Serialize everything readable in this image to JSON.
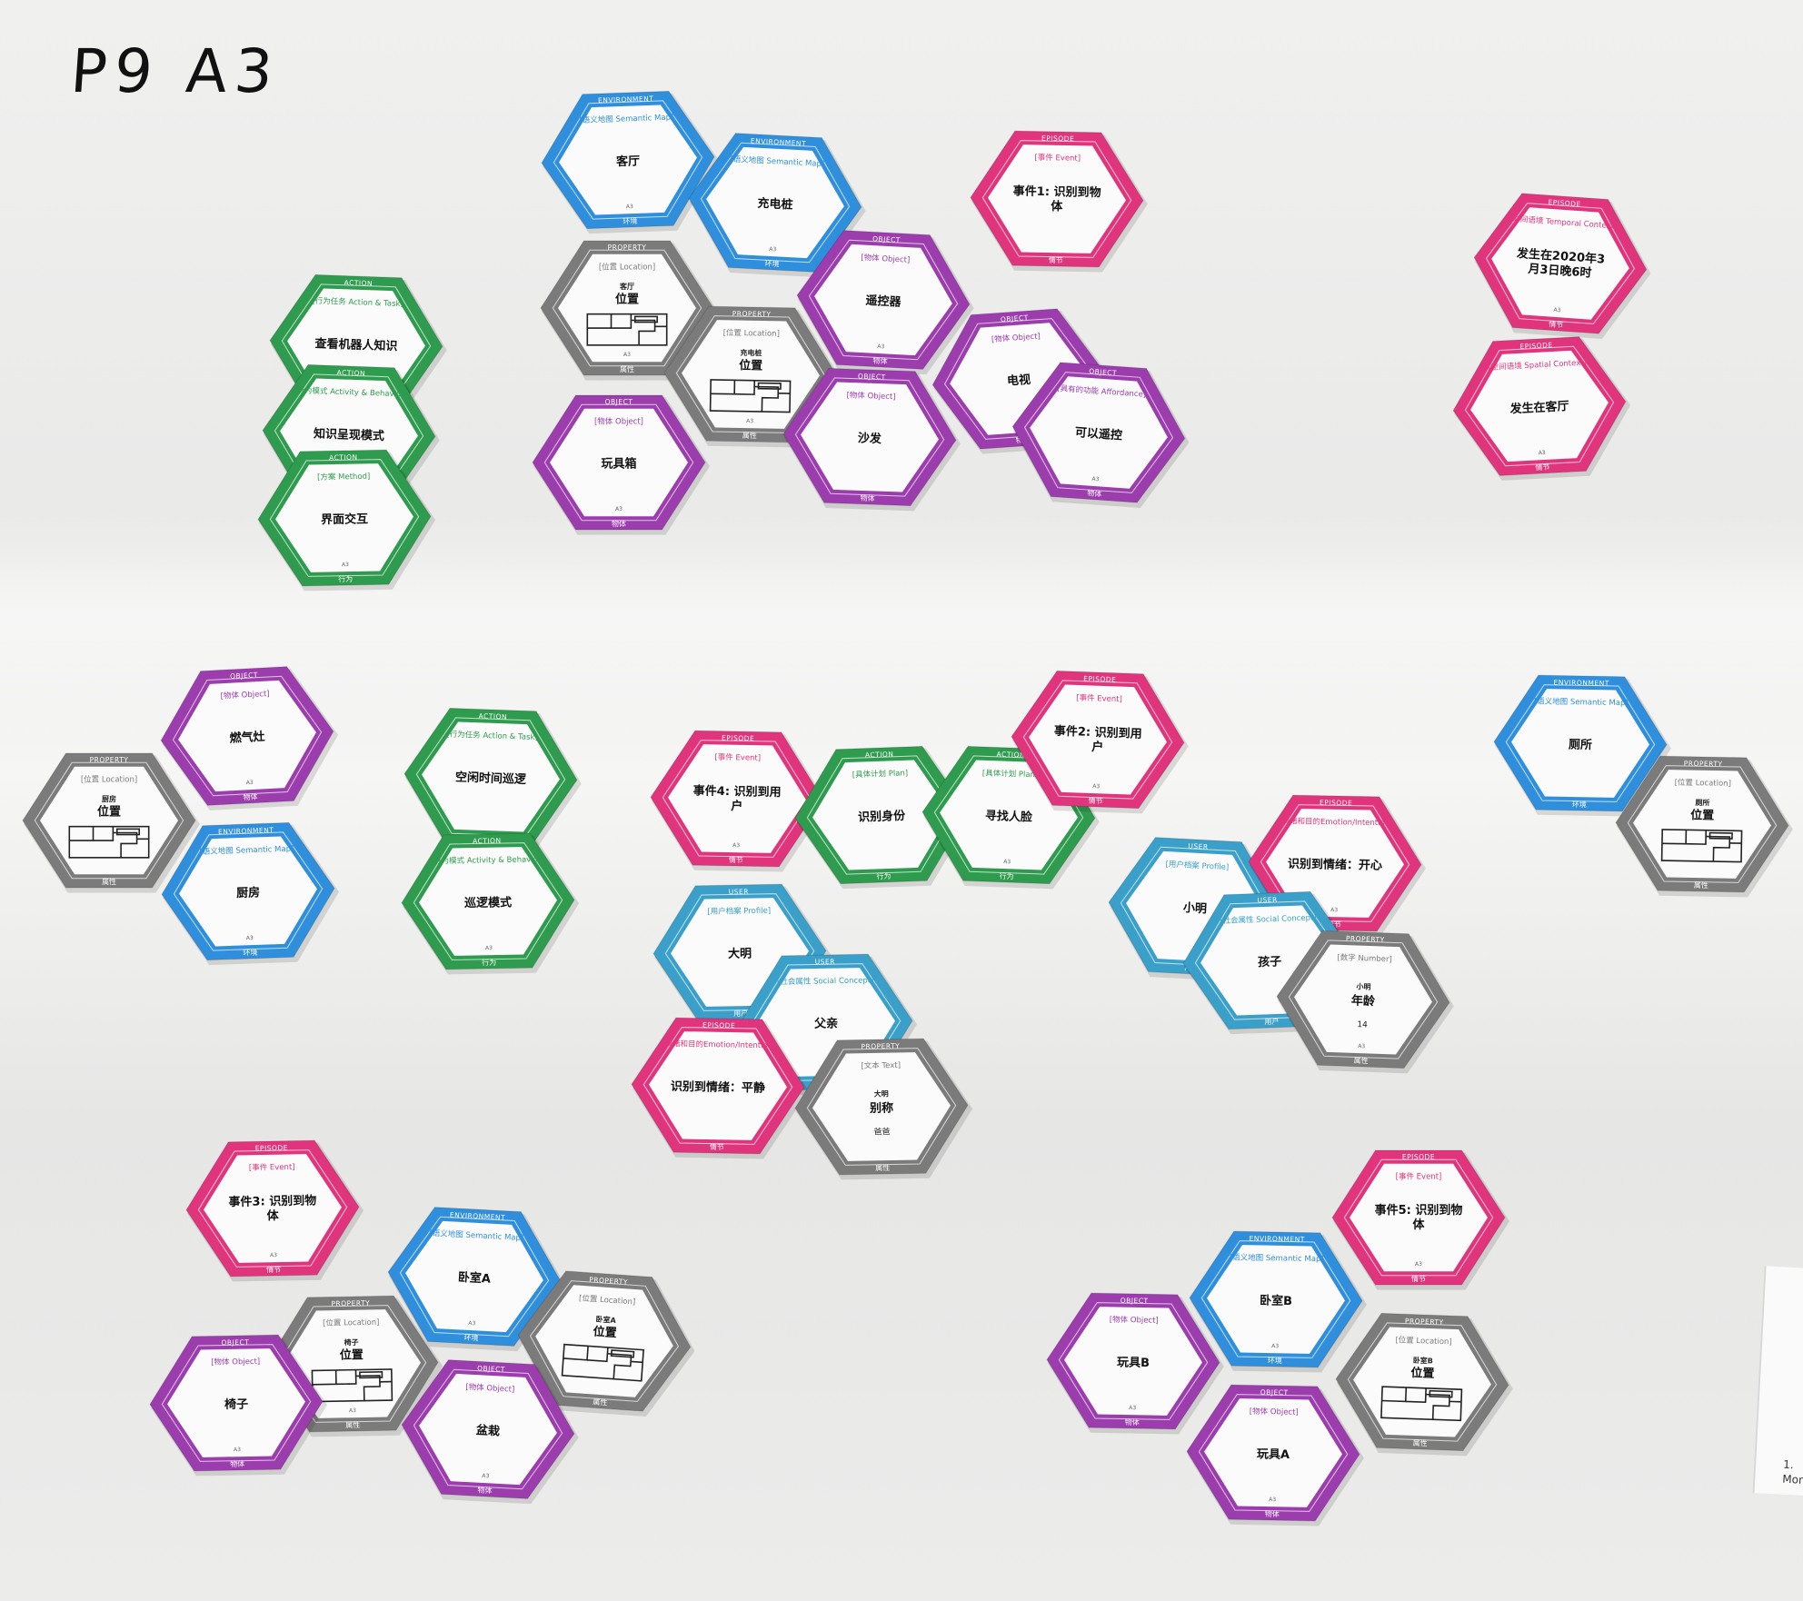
{
  "board": {
    "label": "P9 A3",
    "edge_note": [
      "1.",
      "Mom"
    ]
  },
  "colors": {
    "ENVIRONMENT": "#2f8fdc",
    "EPISODE": "#e0357c",
    "OBJECT": "#9c3dae",
    "ACTION": "#2f9b4e",
    "PROPERTY": "#7b7b7b",
    "USER": "#3a9fc9"
  },
  "footer_labels": {
    "ENVIRONMENT": "环境",
    "EPISODE": "情节",
    "OBJECT": "物体",
    "ACTION": "行为",
    "PROPERTY": "属性",
    "USER": "用户"
  },
  "cards": [
    {
      "id": "living-room",
      "cat": "ENVIRONMENT",
      "sub": "[语义地图 Semantic Map]",
      "main": "客厅",
      "tag": "A3"
    },
    {
      "id": "charger",
      "cat": "ENVIRONMENT",
      "sub": "[语义地图 Semantic Map]",
      "main": "充电桩",
      "tag": "A3"
    },
    {
      "id": "event1",
      "cat": "EPISODE",
      "sub": "[事件 Event]",
      "main": "事件1: 识别到物体",
      "tag": ""
    },
    {
      "id": "time-context",
      "cat": "EPISODE",
      "sub": "[时间语境 Temporal Context]",
      "main": "发生在2020年3月3日晚6时",
      "tag": "A3"
    },
    {
      "id": "space-context",
      "cat": "EPISODE",
      "sub": "[空间语境 Spatial Context]",
      "main": "发生在客厅",
      "tag": "A3"
    },
    {
      "id": "view-knowledge",
      "cat": "ACTION",
      "sub": "[行为任务 Action & Task]",
      "main": "查看机器人知识",
      "tag": ""
    },
    {
      "id": "pos-living",
      "cat": "PROPERTY",
      "sub": "[位置 Location]",
      "main": "位置",
      "small": "客厅",
      "map": true,
      "tag": "A3"
    },
    {
      "id": "remote",
      "cat": "OBJECT",
      "sub": "[物体 Object]",
      "main": "遥控器",
      "tag": "A3"
    },
    {
      "id": "pos-charger",
      "cat": "PROPERTY",
      "sub": "[位置 Location]",
      "main": "位置",
      "small": "充电桩",
      "map": true,
      "tag": "A3"
    },
    {
      "id": "tv",
      "cat": "OBJECT",
      "sub": "[物体 Object]",
      "main": "电视",
      "tag": ""
    },
    {
      "id": "knowledge-mode",
      "cat": "ACTION",
      "sub": "[行为模式 Activity & Behavior]",
      "main": "知识呈现模式",
      "tag": ""
    },
    {
      "id": "sofa",
      "cat": "OBJECT",
      "sub": "[物体 Object]",
      "main": "沙发",
      "tag": ""
    },
    {
      "id": "can-remote",
      "cat": "OBJECT",
      "sub": "[具有的功能 Affordance]",
      "main": "可以遥控",
      "tag": "A3"
    },
    {
      "id": "toybox",
      "cat": "OBJECT",
      "sub": "[物体 Object]",
      "main": "玩具箱",
      "tag": "A3"
    },
    {
      "id": "ui-interact",
      "cat": "ACTION",
      "sub": "[方案 Method]",
      "main": "界面交互",
      "tag": "A3"
    },
    {
      "id": "stove",
      "cat": "OBJECT",
      "sub": "[物体 Object]",
      "main": "燃气灶",
      "tag": "A3"
    },
    {
      "id": "pos-kitchen",
      "cat": "PROPERTY",
      "sub": "[位置 Location]",
      "main": "位置",
      "small": "厨房",
      "map": true,
      "tag": ""
    },
    {
      "id": "kitchen",
      "cat": "ENVIRONMENT",
      "sub": "[语义地图 Semantic Map]",
      "main": "厨房",
      "tag": "A3"
    },
    {
      "id": "idle-patrol",
      "cat": "ACTION",
      "sub": "[行为任务 Action & Task]",
      "main": "空闲时间巡逻",
      "tag": ""
    },
    {
      "id": "patrol-mode",
      "cat": "ACTION",
      "sub": "[行为模式 Activity & Behavior]",
      "main": "巡逻模式",
      "tag": "A3"
    },
    {
      "id": "event4",
      "cat": "EPISODE",
      "sub": "[事件 Event]",
      "main": "事件4: 识别到用户",
      "tag": "A3"
    },
    {
      "id": "identify",
      "cat": "ACTION",
      "sub": "[具体计划 Plan]",
      "main": "识别身份",
      "tag": ""
    },
    {
      "id": "find-face",
      "cat": "ACTION",
      "sub": "[具体计划 Plan]",
      "main": "寻找人脸",
      "tag": "A3"
    },
    {
      "id": "event2",
      "cat": "EPISODE",
      "sub": "[事件 Event]",
      "main": "事件2: 识别到用户",
      "tag": "A3"
    },
    {
      "id": "bathroom",
      "cat": "ENVIRONMENT",
      "sub": "[语义地图 Semantic Map]",
      "main": "厕所",
      "tag": ""
    },
    {
      "id": "pos-bathroom",
      "cat": "PROPERTY",
      "sub": "[位置 Location]",
      "main": "位置",
      "small": "厕所",
      "map": true,
      "tag": ""
    },
    {
      "id": "xiaoming",
      "cat": "USER",
      "sub": "[用户档案 Profile]",
      "main": "小明",
      "tag": ""
    },
    {
      "id": "emotion-happy",
      "cat": "EPISODE",
      "sub": "[情绪和目的Emotion/Intention]",
      "main": "识别到情绪：开心",
      "tag": "A3"
    },
    {
      "id": "child",
      "cat": "USER",
      "sub": "[社会属性 Social Concept]",
      "main": "孩子",
      "tag": ""
    },
    {
      "id": "age",
      "cat": "PROPERTY",
      "sub": "[数字 Number]",
      "main": "年龄",
      "small": "小明",
      "extra": "14",
      "tag": "A3"
    },
    {
      "id": "daming",
      "cat": "USER",
      "sub": "[用户档案 Profile]",
      "main": "大明",
      "tag": ""
    },
    {
      "id": "father",
      "cat": "USER",
      "sub": "[社会属性 Social Concept]",
      "main": "父亲",
      "tag": ""
    },
    {
      "id": "emotion-calm",
      "cat": "EPISODE",
      "sub": "[情绪和目的Emotion/Intention]",
      "main": "识别到情绪：平静",
      "tag": ""
    },
    {
      "id": "nickname",
      "cat": "PROPERTY",
      "sub": "[文本 Text]",
      "main": "别称",
      "small": "大明",
      "extra": "爸爸",
      "tag": ""
    },
    {
      "id": "event3",
      "cat": "EPISODE",
      "sub": "[事件 Event]",
      "main": "事件3: 识别到物体",
      "tag": "A3"
    },
    {
      "id": "bedroom-a",
      "cat": "ENVIRONMENT",
      "sub": "[语义地图 Semantic Map]",
      "main": "卧室A",
      "tag": "A3"
    },
    {
      "id": "pos-bedroom-a",
      "cat": "PROPERTY",
      "sub": "[位置 Location]",
      "main": "位置",
      "small": "卧室A",
      "map": true,
      "tag": ""
    },
    {
      "id": "pos-chair",
      "cat": "PROPERTY",
      "sub": "[位置 Location]",
      "main": "位置",
      "small": "椅子",
      "map": true,
      "tag": "A3"
    },
    {
      "id": "chair",
      "cat": "OBJECT",
      "sub": "[物体 Object]",
      "main": "椅子",
      "tag": "A3"
    },
    {
      "id": "plant",
      "cat": "OBJECT",
      "sub": "[物体 Object]",
      "main": "盆栽",
      "tag": "A3"
    },
    {
      "id": "event5",
      "cat": "EPISODE",
      "sub": "[事件 Event]",
      "main": "事件5: 识别到物体",
      "tag": "A3"
    },
    {
      "id": "bedroom-b",
      "cat": "ENVIRONMENT",
      "sub": "[语义地图 Semantic Map]",
      "main": "卧室B",
      "tag": "A3"
    },
    {
      "id": "toy-b",
      "cat": "OBJECT",
      "sub": "[物体 Object]",
      "main": "玩具B",
      "tag": "A3"
    },
    {
      "id": "pos-bedroom-b",
      "cat": "PROPERTY",
      "sub": "[位置 Location]",
      "main": "位置",
      "small": "卧室B",
      "map": true,
      "tag": ""
    },
    {
      "id": "toy-a",
      "cat": "OBJECT",
      "sub": "[物体 Object]",
      "main": "玩具A",
      "tag": "A3"
    }
  ]
}
